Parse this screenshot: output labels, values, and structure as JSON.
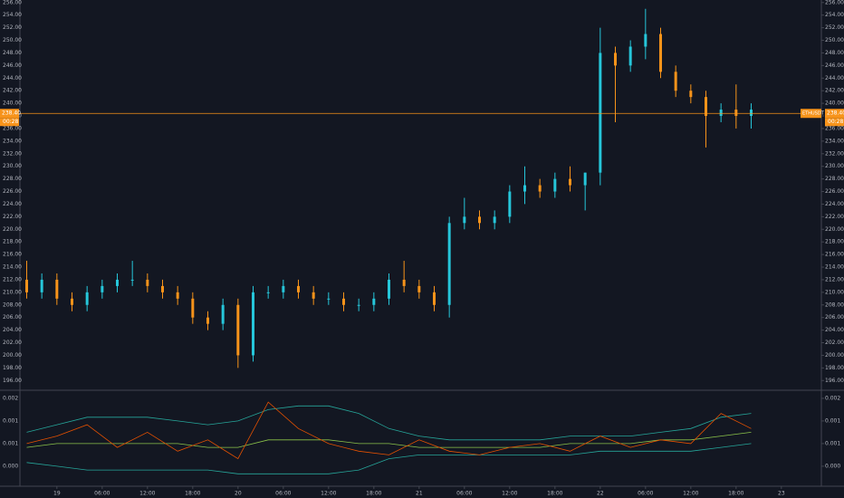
{
  "chart_data": {
    "type": "ohlc",
    "symbol": "ETHUSDT",
    "price_line": {
      "value": 238.4,
      "label": "238.40",
      "countdown": "00:28"
    },
    "up_color": "#26c6da",
    "down_color": "#f7931a",
    "x": [
      -4,
      -2,
      0,
      2,
      4,
      6,
      8,
      10,
      12,
      14,
      16,
      18,
      20,
      22,
      24,
      26,
      28,
      30,
      32,
      34,
      36,
      38,
      40,
      42,
      44,
      46,
      48,
      50,
      52,
      54,
      56,
      58,
      60,
      62,
      64,
      66,
      68,
      70,
      72,
      74,
      76,
      78,
      80,
      82,
      84,
      86,
      88,
      90,
      92
    ],
    "open": [
      212,
      210,
      212,
      209,
      208,
      210,
      211,
      212,
      212,
      211,
      210,
      209,
      206,
      205,
      208,
      200,
      210,
      210,
      211,
      210,
      209,
      209,
      208,
      208,
      209,
      212,
      211,
      210,
      208,
      221,
      222,
      221,
      222,
      226,
      227,
      226,
      228,
      227,
      229,
      248,
      246,
      249,
      251,
      245,
      242,
      241,
      238,
      239,
      238
    ],
    "high": [
      215,
      213,
      213,
      210,
      211,
      212,
      213,
      215,
      213,
      212,
      211,
      210,
      207,
      209,
      209,
      211,
      211,
      212,
      212,
      211,
      210,
      210,
      209,
      210,
      213,
      215,
      212,
      211,
      222,
      225,
      223,
      223,
      227,
      230,
      228,
      229,
      230,
      229,
      252,
      249,
      250,
      255,
      252,
      246,
      243,
      242,
      240,
      243,
      240
    ],
    "low": [
      209,
      209,
      208,
      207,
      207,
      209,
      210,
      211,
      210,
      209,
      208,
      205,
      204,
      204,
      198,
      199,
      209,
      209,
      209,
      208,
      208,
      207,
      207,
      207,
      208,
      210,
      209,
      207,
      206,
      220,
      220,
      220,
      221,
      224,
      225,
      225,
      226,
      223,
      227,
      237,
      245,
      247,
      244,
      241,
      240,
      233,
      237,
      236,
      236
    ],
    "close": [
      210,
      212,
      209,
      208,
      210,
      211,
      212,
      212,
      211,
      210,
      209,
      206,
      205,
      208,
      200,
      210,
      210,
      211,
      210,
      209,
      209,
      208,
      208,
      209,
      212,
      211,
      210,
      208,
      221,
      222,
      221,
      222,
      226,
      227,
      226,
      228,
      227,
      229,
      248,
      246,
      249,
      251,
      245,
      242,
      241,
      238,
      239,
      238,
      239
    ],
    "xlim": [
      -4.9,
      101.3
    ],
    "xticks": [
      {
        "value": 0,
        "label": "19"
      },
      {
        "value": 6,
        "label": "06:00"
      },
      {
        "value": 12,
        "label": "12:00"
      },
      {
        "value": 18,
        "label": "18:00"
      },
      {
        "value": 24,
        "label": "20"
      },
      {
        "value": 30,
        "label": "06:00"
      },
      {
        "value": 36,
        "label": "12:00"
      },
      {
        "value": 42,
        "label": "18:00"
      },
      {
        "value": 48,
        "label": "21"
      },
      {
        "value": 54,
        "label": "06:00"
      },
      {
        "value": 60,
        "label": "12:00"
      },
      {
        "value": 66,
        "label": "18:00"
      },
      {
        "value": 72,
        "label": "22"
      },
      {
        "value": 78,
        "label": "06:00"
      },
      {
        "value": 84,
        "label": "12:00"
      },
      {
        "value": 90,
        "label": "18:00"
      },
      {
        "value": 96,
        "label": "23"
      }
    ],
    "ylim": [
      194.6,
      256.4
    ],
    "yticks": [
      {
        "value": 196,
        "label": "196.00"
      },
      {
        "value": 198,
        "label": "198.00"
      },
      {
        "value": 200,
        "label": "200.00"
      },
      {
        "value": 202,
        "label": "202.00"
      },
      {
        "value": 204,
        "label": "204.00"
      },
      {
        "value": 206,
        "label": "206.00"
      },
      {
        "value": 208,
        "label": "208.00"
      },
      {
        "value": 210,
        "label": "210.00"
      },
      {
        "value": 212,
        "label": "212.00"
      },
      {
        "value": 214,
        "label": "214.00"
      },
      {
        "value": 216,
        "label": "216.00"
      },
      {
        "value": 218,
        "label": "218.00"
      },
      {
        "value": 220,
        "label": "220.00"
      },
      {
        "value": 222,
        "label": "222.00"
      },
      {
        "value": 224,
        "label": "224.00"
      },
      {
        "value": 226,
        "label": "226.00"
      },
      {
        "value": 228,
        "label": "228.00"
      },
      {
        "value": 230,
        "label": "230.00"
      },
      {
        "value": 232,
        "label": "232.00"
      },
      {
        "value": 234,
        "label": "234.00"
      },
      {
        "value": 236,
        "label": "236.00"
      },
      {
        "value": 238,
        "label": "238.00"
      },
      {
        "value": 240,
        "label": "240.00"
      },
      {
        "value": 242,
        "label": "242.00"
      },
      {
        "value": 244,
        "label": "244.00"
      },
      {
        "value": 246,
        "label": "246.00"
      },
      {
        "value": 248,
        "label": "248.00"
      },
      {
        "value": 250,
        "label": "250.00"
      },
      {
        "value": 252,
        "label": "252.00"
      },
      {
        "value": 254,
        "label": "254.00"
      },
      {
        "value": 256,
        "label": "256.00"
      }
    ],
    "indicator": {
      "type": "line",
      "x": [
        -4,
        0,
        4,
        8,
        12,
        16,
        20,
        24,
        28,
        32,
        36,
        40,
        44,
        48,
        52,
        56,
        60,
        64,
        68,
        72,
        76,
        80,
        84,
        88,
        92
      ],
      "ylim": [
        -0.00033,
        0.00219
      ],
      "yticks": [
        {
          "value": 0.002,
          "label": "0.002"
        },
        {
          "value": 0.0014,
          "label": "0.001"
        },
        {
          "value": 0.0008,
          "label": "0.001"
        },
        {
          "value": 0.0002,
          "label": "0.000"
        }
      ],
      "series": [
        {
          "color": "#26a69a",
          "values": [
            0.0011,
            0.0013,
            0.0015,
            0.0015,
            0.0015,
            0.0014,
            0.0013,
            0.0014,
            0.0017,
            0.0018,
            0.0018,
            0.0016,
            0.0012,
            0.001,
            0.0009,
            0.0009,
            0.0009,
            0.0009,
            0.001,
            0.001,
            0.001,
            0.0011,
            0.0012,
            0.0015,
            0.0016
          ]
        },
        {
          "color": "#26a69a",
          "values": [
            0.0003,
            0.0002,
            0.0001,
            0.0001,
            0.0001,
            0.0001,
            0.0001,
            0.0,
            0.0,
            0.0,
            0.0,
            0.0001,
            0.0004,
            0.0005,
            0.0005,
            0.0005,
            0.0005,
            0.0005,
            0.0005,
            0.0006,
            0.0006,
            0.0006,
            0.0006,
            0.0007,
            0.0008
          ]
        },
        {
          "color": "#8bc34a",
          "values": [
            0.0007,
            0.0008,
            0.0008,
            0.0008,
            0.0008,
            0.0008,
            0.0007,
            0.0007,
            0.0009,
            0.0009,
            0.0009,
            0.0008,
            0.0008,
            0.0007,
            0.0007,
            0.0007,
            0.0007,
            0.0007,
            0.0008,
            0.0008,
            0.0008,
            0.0009,
            0.0009,
            0.001,
            0.0011
          ]
        },
        {
          "color": "#e65100",
          "values": [
            0.0008,
            0.001,
            0.0013,
            0.0007,
            0.0011,
            0.0006,
            0.0009,
            0.0004,
            0.0019,
            0.0012,
            0.0008,
            0.0006,
            0.0005,
            0.0009,
            0.0006,
            0.0005,
            0.0007,
            0.0008,
            0.0006,
            0.001,
            0.0007,
            0.0009,
            0.0008,
            0.0016,
            0.0012
          ]
        }
      ]
    }
  }
}
